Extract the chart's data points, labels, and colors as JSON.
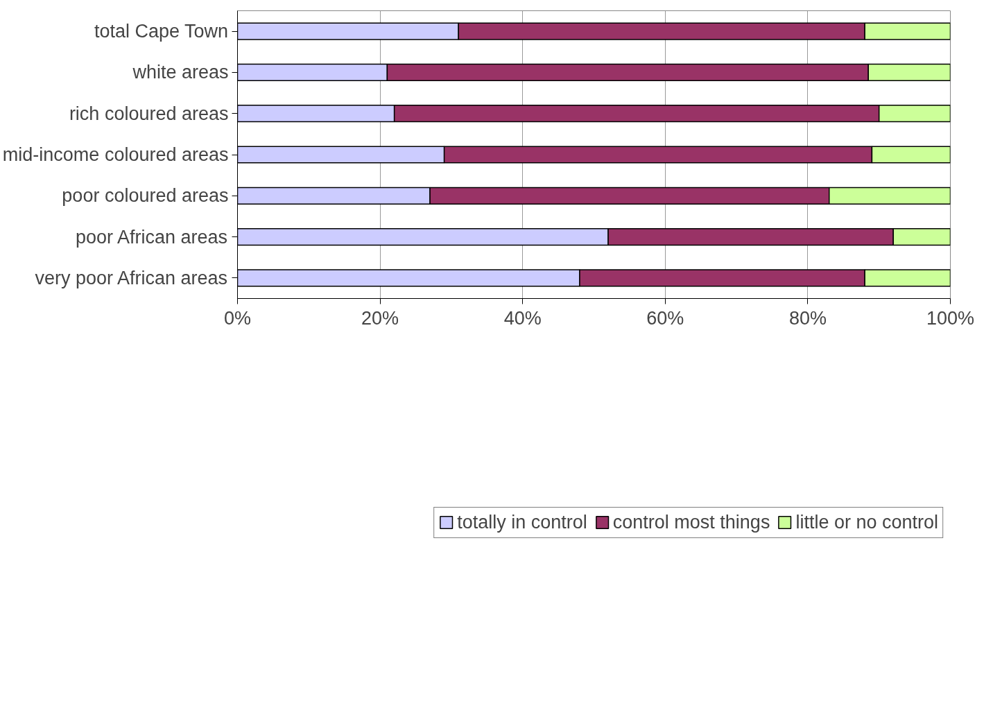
{
  "chart_data": {
    "type": "bar",
    "orientation": "horizontal",
    "stacked": true,
    "categories": [
      "total Cape Town",
      "white areas",
      "rich coloured areas",
      "mid-income coloured areas",
      "poor coloured areas",
      "poor African areas",
      "very poor African areas"
    ],
    "series": [
      {
        "name": "totally in control",
        "color": "#ccccff",
        "values": [
          31,
          21,
          22,
          29,
          27,
          52,
          48
        ]
      },
      {
        "name": "control most things",
        "color": "#993366",
        "values": [
          57,
          67.5,
          68,
          60,
          56,
          40,
          40
        ]
      },
      {
        "name": "little or no control",
        "color": "#ccff99",
        "values": [
          12,
          11.5,
          10,
          11,
          17,
          8,
          12
        ]
      }
    ],
    "xlim": [
      0,
      100
    ],
    "xticks": [
      {
        "value": 0,
        "label": "0%"
      },
      {
        "value": 20,
        "label": "20%"
      },
      {
        "value": 40,
        "label": "40%"
      },
      {
        "value": 60,
        "label": "60%"
      },
      {
        "value": 80,
        "label": "80%"
      },
      {
        "value": 100,
        "label": "100%"
      }
    ],
    "grid": "x",
    "legend": "bottom"
  }
}
